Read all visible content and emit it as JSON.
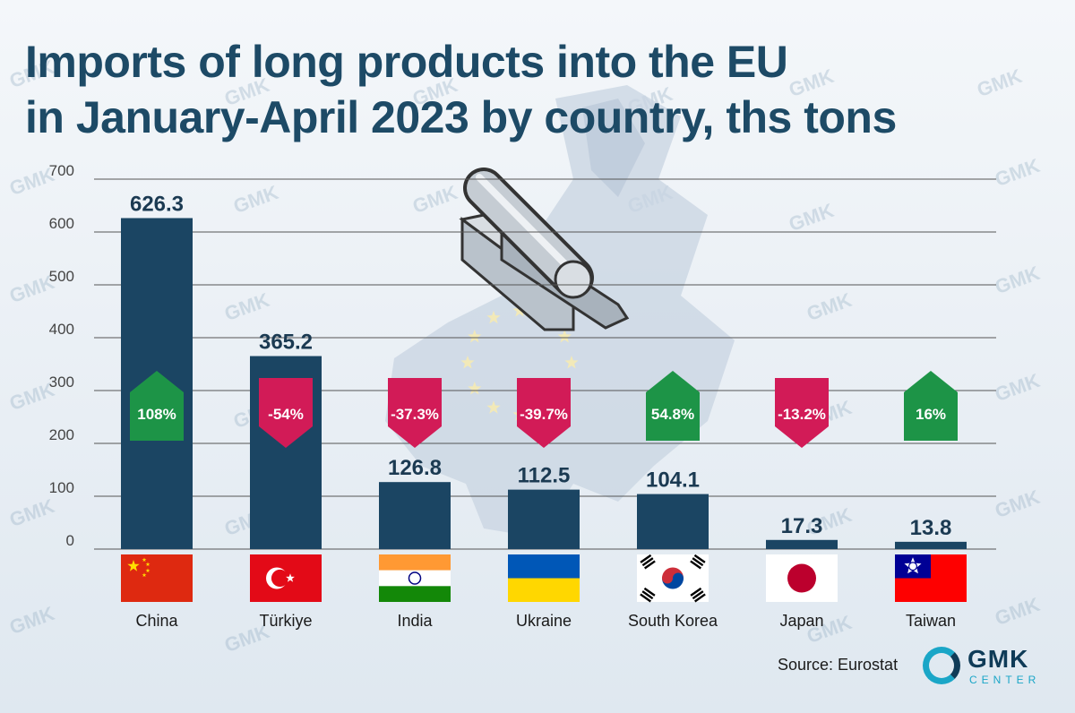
{
  "title_lines": [
    "Imports of long products into the EU",
    "in January-April 2023 by country, ths tons"
  ],
  "source": "Source: Eurostat",
  "logo": {
    "text": "GMK",
    "subtext": "CENTER",
    "icon": "gmk-ring-icon",
    "ring_color": "#1aa6c7",
    "text_color": "#0f3b57"
  },
  "watermark_text": "GMK",
  "colors": {
    "bar": "#1b4563",
    "increase": "#1d9447",
    "decrease": "#d21b57",
    "grid": "#555555"
  },
  "chart_data": {
    "type": "bar",
    "title": "Imports of long products into the EU in January-April 2023 by country, ths tons",
    "xlabel": "",
    "ylabel": "",
    "ylim": [
      0,
      700
    ],
    "yticks": [
      0,
      100,
      200,
      300,
      400,
      500,
      600,
      700
    ],
    "grid": true,
    "categories": [
      "China",
      "Türkiye",
      "India",
      "Ukraine",
      "South Korea",
      "Japan",
      "Taiwan"
    ],
    "values": [
      626.3,
      365.2,
      126.8,
      112.5,
      104.1,
      17.3,
      13.8
    ],
    "value_labels": [
      "626.3",
      "365.2",
      "126.8",
      "112.5",
      "104.1",
      "17.3",
      "13.8"
    ],
    "changes": [
      "108%",
      "-54%",
      "-37.3%",
      "-39.7%",
      "54.8%",
      "-13.2%",
      "16%"
    ],
    "change_direction": [
      "up",
      "down",
      "down",
      "down",
      "up",
      "down",
      "up"
    ],
    "flags": [
      "china-flag-icon",
      "turkey-flag-icon",
      "india-flag-icon",
      "ukraine-flag-icon",
      "south-korea-flag-icon",
      "japan-flag-icon",
      "taiwan-flag-icon"
    ]
  }
}
